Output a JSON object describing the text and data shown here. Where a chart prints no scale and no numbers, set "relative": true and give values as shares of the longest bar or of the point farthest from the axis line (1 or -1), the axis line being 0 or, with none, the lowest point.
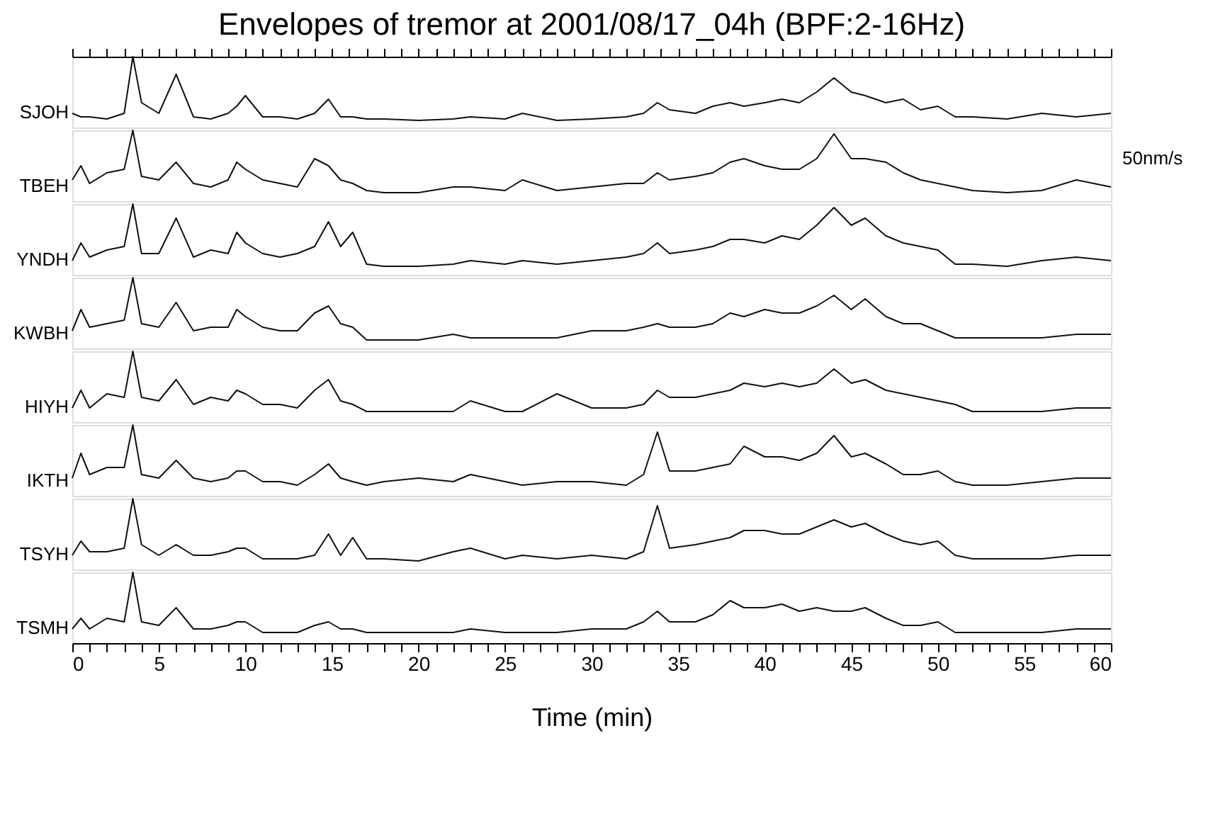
{
  "chart_data": [
    {
      "type": "line",
      "title": "Envelopes of tremor at 2001/08/17_04h (BPF:2-16Hz)",
      "ylabel": "SJOH",
      "relative": true,
      "tick_labels": false,
      "xlim": [
        0,
        60
      ],
      "xticks": [
        0,
        {
          "value": 1,
          "label": null
        },
        {
          "value": 2,
          "label": null
        },
        {
          "value": 3,
          "label": null
        },
        {
          "value": 4,
          "label": null
        },
        5,
        {
          "value": 6,
          "label": null
        },
        {
          "value": 7,
          "label": null
        },
        {
          "value": 8,
          "label": null
        },
        {
          "value": 9,
          "label": null
        },
        10,
        {
          "value": 11,
          "label": null
        },
        {
          "value": 12,
          "label": null
        },
        {
          "value": 13,
          "label": null
        },
        {
          "value": 14,
          "label": null
        },
        15,
        {
          "value": 16,
          "label": null
        },
        {
          "value": 17,
          "label": null
        },
        {
          "value": 18,
          "label": null
        },
        {
          "value": 19,
          "label": null
        },
        20,
        {
          "value": 21,
          "label": null
        },
        {
          "value": 22,
          "label": null
        },
        {
          "value": 23,
          "label": null
        },
        {
          "value": 24,
          "label": null
        },
        25,
        {
          "value": 26,
          "label": null
        },
        {
          "value": 27,
          "label": null
        },
        {
          "value": 28,
          "label": null
        },
        {
          "value": 29,
          "label": null
        },
        30,
        {
          "value": 31,
          "label": null
        },
        {
          "value": 32,
          "label": null
        },
        {
          "value": 33,
          "label": null
        },
        {
          "value": 34,
          "label": null
        },
        35,
        {
          "value": 36,
          "label": null
        },
        {
          "value": 37,
          "label": null
        },
        {
          "value": 38,
          "label": null
        },
        {
          "value": 39,
          "label": null
        },
        40,
        {
          "value": 41,
          "label": null
        },
        {
          "value": 42,
          "label": null
        },
        {
          "value": 43,
          "label": null
        },
        {
          "value": 44,
          "label": null
        },
        45,
        {
          "value": 46,
          "label": null
        },
        {
          "value": 47,
          "label": null
        },
        {
          "value": 48,
          "label": null
        },
        {
          "value": 49,
          "label": null
        },
        50,
        {
          "value": 51,
          "label": null
        },
        {
          "value": 52,
          "label": null
        },
        {
          "value": 53,
          "label": null
        },
        {
          "value": 54,
          "label": null
        },
        55,
        {
          "value": 56,
          "label": null
        },
        {
          "value": 57,
          "label": null
        },
        {
          "value": 58,
          "label": null
        },
        {
          "value": 59,
          "label": null
        },
        60
      ],
      "x": [
        0,
        0.5,
        1,
        2,
        3,
        3.5,
        4,
        5,
        6,
        7,
        8,
        9,
        9.5,
        10,
        11,
        12,
        13,
        14,
        14.8,
        15.5,
        16.2,
        17,
        18,
        20,
        22,
        23,
        25,
        26,
        28,
        30,
        32,
        33,
        33.8,
        34.5,
        36,
        37,
        38,
        38.8,
        40,
        41,
        42,
        43,
        44,
        45,
        45.8,
        47,
        48,
        49,
        50,
        51,
        52,
        54,
        56,
        58,
        60
      ],
      "series": [
        {
          "color": "#111111",
          "values": [
            0.2,
            0.15,
            0.15,
            0.12,
            0.2,
            1,
            0.35,
            0.2,
            0.75,
            0.15,
            0.12,
            0.2,
            0.3,
            0.45,
            0.15,
            0.15,
            0.12,
            0.2,
            0.4,
            0.15,
            0.15,
            0.12,
            0.12,
            0.1,
            0.12,
            0.15,
            0.12,
            0.2,
            0.1,
            0.12,
            0.15,
            0.2,
            0.35,
            0.25,
            0.2,
            0.3,
            0.35,
            0.3,
            0.35,
            0.4,
            0.35,
            0.5,
            0.7,
            0.5,
            0.45,
            0.35,
            0.4,
            0.25,
            0.3,
            0.15,
            0.15,
            0.12,
            0.2,
            0.15,
            0.2
          ]
        }
      ]
    },
    {
      "type": "line",
      "ylabel": "TBEH",
      "relative": true,
      "tick_labels": false,
      "xlim": [
        0,
        60
      ],
      "annotations": [
        "50nm/s"
      ],
      "x": [
        0,
        0.5,
        1,
        2,
        3,
        3.5,
        4,
        5,
        6,
        7,
        8,
        9,
        9.5,
        10,
        11,
        12,
        13,
        14,
        14.8,
        15.5,
        16.2,
        17,
        18,
        20,
        22,
        23,
        25,
        26,
        28,
        30,
        32,
        33,
        33.8,
        34.5,
        36,
        37,
        38,
        38.8,
        40,
        41,
        42,
        43,
        44,
        45,
        45.8,
        47,
        48,
        49,
        50,
        51,
        52,
        54,
        56,
        58,
        60
      ],
      "series": [
        {
          "color": "#111111",
          "values": [
            0.3,
            0.5,
            0.25,
            0.4,
            0.45,
            1,
            0.35,
            0.3,
            0.55,
            0.25,
            0.2,
            0.3,
            0.55,
            0.45,
            0.3,
            0.25,
            0.2,
            0.6,
            0.5,
            0.3,
            0.25,
            0.15,
            0.12,
            0.12,
            0.2,
            0.2,
            0.15,
            0.3,
            0.15,
            0.2,
            0.25,
            0.25,
            0.4,
            0.3,
            0.35,
            0.4,
            0.55,
            0.6,
            0.5,
            0.45,
            0.45,
            0.6,
            0.95,
            0.6,
            0.6,
            0.55,
            0.4,
            0.3,
            0.25,
            0.2,
            0.15,
            0.12,
            0.15,
            0.3,
            0.2
          ]
        }
      ]
    },
    {
      "type": "line",
      "ylabel": "YNDH",
      "relative": true,
      "tick_labels": false,
      "xlim": [
        0,
        60
      ],
      "x": [
        0,
        0.5,
        1,
        2,
        3,
        3.5,
        4,
        5,
        6,
        7,
        8,
        9,
        9.5,
        10,
        11,
        12,
        13,
        14,
        14.8,
        15.5,
        16.2,
        17,
        18,
        20,
        22,
        23,
        25,
        26,
        28,
        30,
        32,
        33,
        33.8,
        34.5,
        36,
        37,
        38,
        38.8,
        40,
        41,
        42,
        43,
        44,
        45,
        45.8,
        47,
        48,
        49,
        50,
        51,
        52,
        54,
        56,
        58,
        60
      ],
      "series": [
        {
          "color": "#111111",
          "values": [
            0.2,
            0.45,
            0.25,
            0.35,
            0.4,
            1,
            0.3,
            0.3,
            0.8,
            0.25,
            0.35,
            0.3,
            0.6,
            0.45,
            0.3,
            0.25,
            0.3,
            0.4,
            0.75,
            0.4,
            0.6,
            0.15,
            0.12,
            0.12,
            0.15,
            0.2,
            0.15,
            0.2,
            0.15,
            0.2,
            0.25,
            0.3,
            0.45,
            0.3,
            0.35,
            0.4,
            0.5,
            0.5,
            0.45,
            0.55,
            0.5,
            0.7,
            0.95,
            0.7,
            0.8,
            0.55,
            0.45,
            0.4,
            0.35,
            0.15,
            0.15,
            0.12,
            0.2,
            0.25,
            0.2
          ]
        }
      ]
    },
    {
      "type": "line",
      "ylabel": "KWBH",
      "relative": true,
      "tick_labels": false,
      "xlim": [
        0,
        60
      ],
      "x": [
        0,
        0.5,
        1,
        2,
        3,
        3.5,
        4,
        5,
        6,
        7,
        8,
        9,
        9.5,
        10,
        11,
        12,
        13,
        14,
        14.8,
        15.5,
        16.2,
        17,
        18,
        20,
        22,
        23,
        25,
        26,
        28,
        30,
        32,
        33,
        33.8,
        34.5,
        36,
        37,
        38,
        38.8,
        40,
        41,
        42,
        43,
        44,
        45,
        45.8,
        47,
        48,
        49,
        50,
        51,
        52,
        54,
        56,
        58,
        60
      ],
      "series": [
        {
          "color": "#111111",
          "values": [
            0.25,
            0.55,
            0.3,
            0.35,
            0.4,
            1,
            0.35,
            0.3,
            0.65,
            0.25,
            0.3,
            0.3,
            0.55,
            0.45,
            0.3,
            0.25,
            0.25,
            0.5,
            0.6,
            0.35,
            0.3,
            0.12,
            0.12,
            0.12,
            0.2,
            0.15,
            0.15,
            0.15,
            0.15,
            0.25,
            0.25,
            0.3,
            0.35,
            0.3,
            0.3,
            0.35,
            0.5,
            0.45,
            0.55,
            0.5,
            0.5,
            0.6,
            0.75,
            0.55,
            0.7,
            0.45,
            0.35,
            0.35,
            0.25,
            0.15,
            0.15,
            0.15,
            0.15,
            0.2,
            0.2
          ]
        }
      ]
    },
    {
      "type": "line",
      "ylabel": "HIYH",
      "relative": true,
      "tick_labels": false,
      "xlim": [
        0,
        60
      ],
      "x": [
        0,
        0.5,
        1,
        2,
        3,
        3.5,
        4,
        5,
        6,
        7,
        8,
        9,
        9.5,
        10,
        11,
        12,
        13,
        14,
        14.8,
        15.5,
        16.2,
        17,
        18,
        20,
        22,
        23,
        25,
        26,
        28,
        30,
        32,
        33,
        33.8,
        34.5,
        36,
        37,
        38,
        38.8,
        40,
        41,
        42,
        43,
        44,
        45,
        45.8,
        47,
        48,
        49,
        50,
        51,
        52,
        54,
        56,
        58,
        60
      ],
      "series": [
        {
          "color": "#111111",
          "values": [
            0.2,
            0.45,
            0.2,
            0.4,
            0.35,
            1,
            0.35,
            0.3,
            0.6,
            0.25,
            0.35,
            0.3,
            0.45,
            0.4,
            0.25,
            0.25,
            0.2,
            0.45,
            0.6,
            0.3,
            0.25,
            0.15,
            0.15,
            0.15,
            0.15,
            0.3,
            0.15,
            0.15,
            0.4,
            0.2,
            0.2,
            0.25,
            0.45,
            0.35,
            0.35,
            0.4,
            0.45,
            0.55,
            0.5,
            0.55,
            0.5,
            0.55,
            0.75,
            0.55,
            0.6,
            0.45,
            0.4,
            0.35,
            0.3,
            0.25,
            0.15,
            0.15,
            0.15,
            0.2,
            0.2
          ]
        }
      ]
    },
    {
      "type": "line",
      "ylabel": "IKTH",
      "relative": true,
      "tick_labels": false,
      "xlim": [
        0,
        60
      ],
      "x": [
        0,
        0.5,
        1,
        2,
        3,
        3.5,
        4,
        5,
        6,
        7,
        8,
        9,
        9.5,
        10,
        11,
        12,
        13,
        14,
        14.8,
        15.5,
        16.2,
        17,
        18,
        20,
        22,
        23,
        25,
        26,
        28,
        30,
        32,
        33,
        33.8,
        34.5,
        36,
        37,
        38,
        38.8,
        40,
        41,
        42,
        43,
        44,
        45,
        45.8,
        47,
        48,
        49,
        50,
        51,
        52,
        54,
        56,
        58,
        60
      ],
      "series": [
        {
          "color": "#111111",
          "values": [
            0.25,
            0.6,
            0.3,
            0.4,
            0.4,
            1,
            0.3,
            0.25,
            0.5,
            0.25,
            0.2,
            0.25,
            0.35,
            0.35,
            0.2,
            0.2,
            0.15,
            0.3,
            0.45,
            0.25,
            0.2,
            0.15,
            0.2,
            0.25,
            0.2,
            0.3,
            0.2,
            0.15,
            0.2,
            0.2,
            0.15,
            0.3,
            0.9,
            0.35,
            0.35,
            0.4,
            0.45,
            0.7,
            0.55,
            0.55,
            0.5,
            0.6,
            0.85,
            0.55,
            0.6,
            0.45,
            0.3,
            0.3,
            0.35,
            0.2,
            0.15,
            0.15,
            0.2,
            0.25,
            0.25
          ]
        }
      ]
    },
    {
      "type": "line",
      "ylabel": "TSYH",
      "relative": true,
      "tick_labels": false,
      "xlim": [
        0,
        60
      ],
      "x": [
        0,
        0.5,
        1,
        2,
        3,
        3.5,
        4,
        5,
        6,
        7,
        8,
        9,
        9.5,
        10,
        11,
        12,
        13,
        14,
        14.8,
        15.5,
        16.2,
        17,
        18,
        20,
        22,
        23,
        25,
        26,
        28,
        30,
        32,
        33,
        33.8,
        34.5,
        36,
        37,
        38,
        38.8,
        40,
        41,
        42,
        43,
        44,
        45,
        45.8,
        47,
        48,
        49,
        50,
        51,
        52,
        54,
        56,
        58,
        60
      ],
      "series": [
        {
          "color": "#111111",
          "values": [
            0.2,
            0.4,
            0.25,
            0.25,
            0.3,
            1,
            0.35,
            0.2,
            0.35,
            0.2,
            0.2,
            0.25,
            0.3,
            0.3,
            0.15,
            0.15,
            0.15,
            0.2,
            0.5,
            0.2,
            0.45,
            0.15,
            0.15,
            0.12,
            0.25,
            0.3,
            0.15,
            0.2,
            0.15,
            0.2,
            0.15,
            0.25,
            0.9,
            0.3,
            0.35,
            0.4,
            0.45,
            0.55,
            0.55,
            0.5,
            0.5,
            0.6,
            0.7,
            0.6,
            0.65,
            0.5,
            0.4,
            0.35,
            0.4,
            0.2,
            0.15,
            0.15,
            0.15,
            0.2,
            0.2
          ]
        }
      ]
    },
    {
      "type": "line",
      "ylabel": "TSMH",
      "xlabel": "Time (min)",
      "relative": true,
      "tick_labels": "x",
      "xlim": [
        0,
        60
      ],
      "xticks": [
        0,
        {
          "value": 1,
          "label": null
        },
        {
          "value": 2,
          "label": null
        },
        {
          "value": 3,
          "label": null
        },
        {
          "value": 4,
          "label": null
        },
        5,
        {
          "value": 6,
          "label": null
        },
        {
          "value": 7,
          "label": null
        },
        {
          "value": 8,
          "label": null
        },
        {
          "value": 9,
          "label": null
        },
        10,
        {
          "value": 11,
          "label": null
        },
        {
          "value": 12,
          "label": null
        },
        {
          "value": 13,
          "label": null
        },
        {
          "value": 14,
          "label": null
        },
        15,
        {
          "value": 16,
          "label": null
        },
        {
          "value": 17,
          "label": null
        },
        {
          "value": 18,
          "label": null
        },
        {
          "value": 19,
          "label": null
        },
        20,
        {
          "value": 21,
          "label": null
        },
        {
          "value": 22,
          "label": null
        },
        {
          "value": 23,
          "label": null
        },
        {
          "value": 24,
          "label": null
        },
        25,
        {
          "value": 26,
          "label": null
        },
        {
          "value": 27,
          "label": null
        },
        {
          "value": 28,
          "label": null
        },
        {
          "value": 29,
          "label": null
        },
        30,
        {
          "value": 31,
          "label": null
        },
        {
          "value": 32,
          "label": null
        },
        {
          "value": 33,
          "label": null
        },
        {
          "value": 34,
          "label": null
        },
        35,
        {
          "value": 36,
          "label": null
        },
        {
          "value": 37,
          "label": null
        },
        {
          "value": 38,
          "label": null
        },
        {
          "value": 39,
          "label": null
        },
        40,
        {
          "value": 41,
          "label": null
        },
        {
          "value": 42,
          "label": null
        },
        {
          "value": 43,
          "label": null
        },
        {
          "value": 44,
          "label": null
        },
        45,
        {
          "value": 46,
          "label": null
        },
        {
          "value": 47,
          "label": null
        },
        {
          "value": 48,
          "label": null
        },
        {
          "value": 49,
          "label": null
        },
        50,
        {
          "value": 51,
          "label": null
        },
        {
          "value": 52,
          "label": null
        },
        {
          "value": 53,
          "label": null
        },
        {
          "value": 54,
          "label": null
        },
        55,
        {
          "value": 56,
          "label": null
        },
        {
          "value": 57,
          "label": null
        },
        {
          "value": 58,
          "label": null
        },
        {
          "value": 59,
          "label": null
        },
        60
      ],
      "x": [
        0,
        0.5,
        1,
        2,
        3,
        3.5,
        4,
        5,
        6,
        7,
        8,
        9,
        9.5,
        10,
        11,
        12,
        13,
        14,
        14.8,
        15.5,
        16.2,
        17,
        18,
        20,
        22,
        23,
        25,
        26,
        28,
        30,
        32,
        33,
        33.8,
        34.5,
        36,
        37,
        38,
        38.8,
        40,
        41,
        42,
        43,
        44,
        45,
        45.8,
        47,
        48,
        49,
        50,
        51,
        52,
        54,
        56,
        58,
        60
      ],
      "series": [
        {
          "color": "#111111",
          "values": [
            0.2,
            0.35,
            0.2,
            0.35,
            0.3,
            1,
            0.3,
            0.25,
            0.5,
            0.2,
            0.2,
            0.25,
            0.3,
            0.3,
            0.15,
            0.15,
            0.15,
            0.25,
            0.3,
            0.2,
            0.2,
            0.15,
            0.15,
            0.15,
            0.15,
            0.2,
            0.15,
            0.15,
            0.15,
            0.2,
            0.2,
            0.3,
            0.45,
            0.3,
            0.3,
            0.4,
            0.6,
            0.5,
            0.5,
            0.55,
            0.45,
            0.5,
            0.45,
            0.45,
            0.5,
            0.35,
            0.25,
            0.25,
            0.3,
            0.15,
            0.15,
            0.15,
            0.15,
            0.2,
            0.2
          ]
        }
      ]
    }
  ]
}
